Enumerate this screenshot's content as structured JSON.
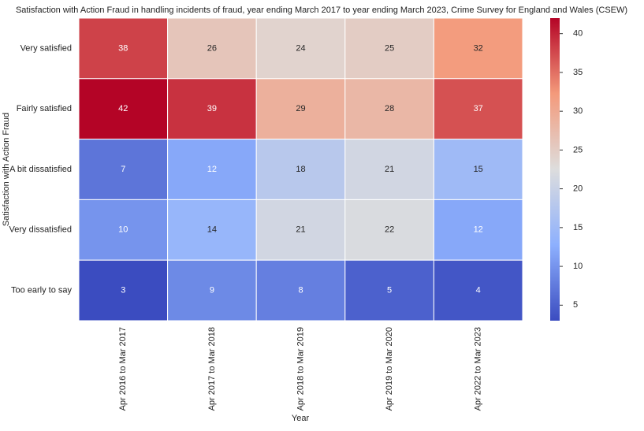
{
  "chart_data": {
    "type": "heatmap",
    "title": "Satisfaction with Action Fraud in handling incidents of fraud, year ending March 2017 to year ending March 2023, Crime Survey for England and Wales (CSEW)",
    "xlabel": "Year",
    "ylabel": "Satisfaction with Action Fraud",
    "x": [
      "Apr 2016 to Mar 2017",
      "Apr 2017 to Mar 2018",
      "Apr 2018 to Mar 2019",
      "Apr 2019 to Mar 2020",
      "Apr 2022 to Mar 2023"
    ],
    "y": [
      "Very satisfied",
      "Fairly satisfied",
      "A bit dissatisfied",
      "Very dissatisfied",
      "Too early to say"
    ],
    "values": [
      [
        38,
        26,
        24,
        25,
        32
      ],
      [
        42,
        39,
        29,
        28,
        37
      ],
      [
        7,
        12,
        18,
        21,
        15
      ],
      [
        10,
        14,
        21,
        22,
        12
      ],
      [
        3,
        9,
        8,
        5,
        4
      ]
    ],
    "colormap": "coolwarm",
    "clim": [
      3,
      42
    ],
    "cticks": [
      5,
      10,
      15,
      20,
      25,
      30,
      35,
      40
    ]
  }
}
